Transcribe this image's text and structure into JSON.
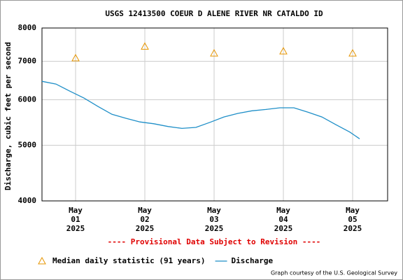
{
  "chart_data": {
    "type": "line",
    "title": "USGS 12413500 COEUR D ALENE RIVER NR CATALDO ID",
    "ylabel": "Discharge, cubic feet per second",
    "annotation": "---- Provisional Data Subject to Revision ----",
    "credit": "Graph courtesy of the U.S. Geological Survey",
    "log_scale_y": true,
    "grid": true,
    "xlim": [
      0.515,
      5.505
    ],
    "xticks": [
      {
        "value": 1,
        "label": [
          "May",
          "01",
          "2025"
        ]
      },
      {
        "value": 2,
        "label": [
          "May",
          "02",
          "2025"
        ]
      },
      {
        "value": 3,
        "label": [
          "May",
          "03",
          "2025"
        ]
      },
      {
        "value": 4,
        "label": [
          "May",
          "04",
          "2025"
        ]
      },
      {
        "value": 5,
        "label": [
          "May",
          "05",
          "2025"
        ]
      }
    ],
    "ylim": [
      4000,
      8000
    ],
    "yticks": [
      4000,
      5000,
      6000,
      7000,
      8000
    ],
    "series": [
      {
        "name": "Median daily statistic (91 years)",
        "color": "#e69500",
        "marker": "triangle",
        "x": [
          1,
          2,
          3,
          4,
          5
        ],
        "values": [
          7090,
          7430,
          7230,
          7290,
          7230
        ]
      },
      {
        "name": "Discharge",
        "color": "#1f8fc8",
        "marker": "line",
        "x": [
          0.515,
          0.717,
          0.919,
          1.121,
          1.323,
          1.525,
          1.727,
          1.929,
          2.131,
          2.333,
          2.535,
          2.737,
          2.939,
          3.141,
          3.343,
          3.545,
          3.747,
          3.949,
          4.152,
          4.354,
          4.556,
          4.758,
          4.96,
          5.101
        ],
        "values": [
          6460,
          6390,
          6210,
          6040,
          5840,
          5660,
          5570,
          5490,
          5450,
          5390,
          5350,
          5370,
          5480,
          5600,
          5680,
          5740,
          5770,
          5810,
          5810,
          5710,
          5600,
          5430,
          5270,
          5130
        ]
      }
    ]
  }
}
